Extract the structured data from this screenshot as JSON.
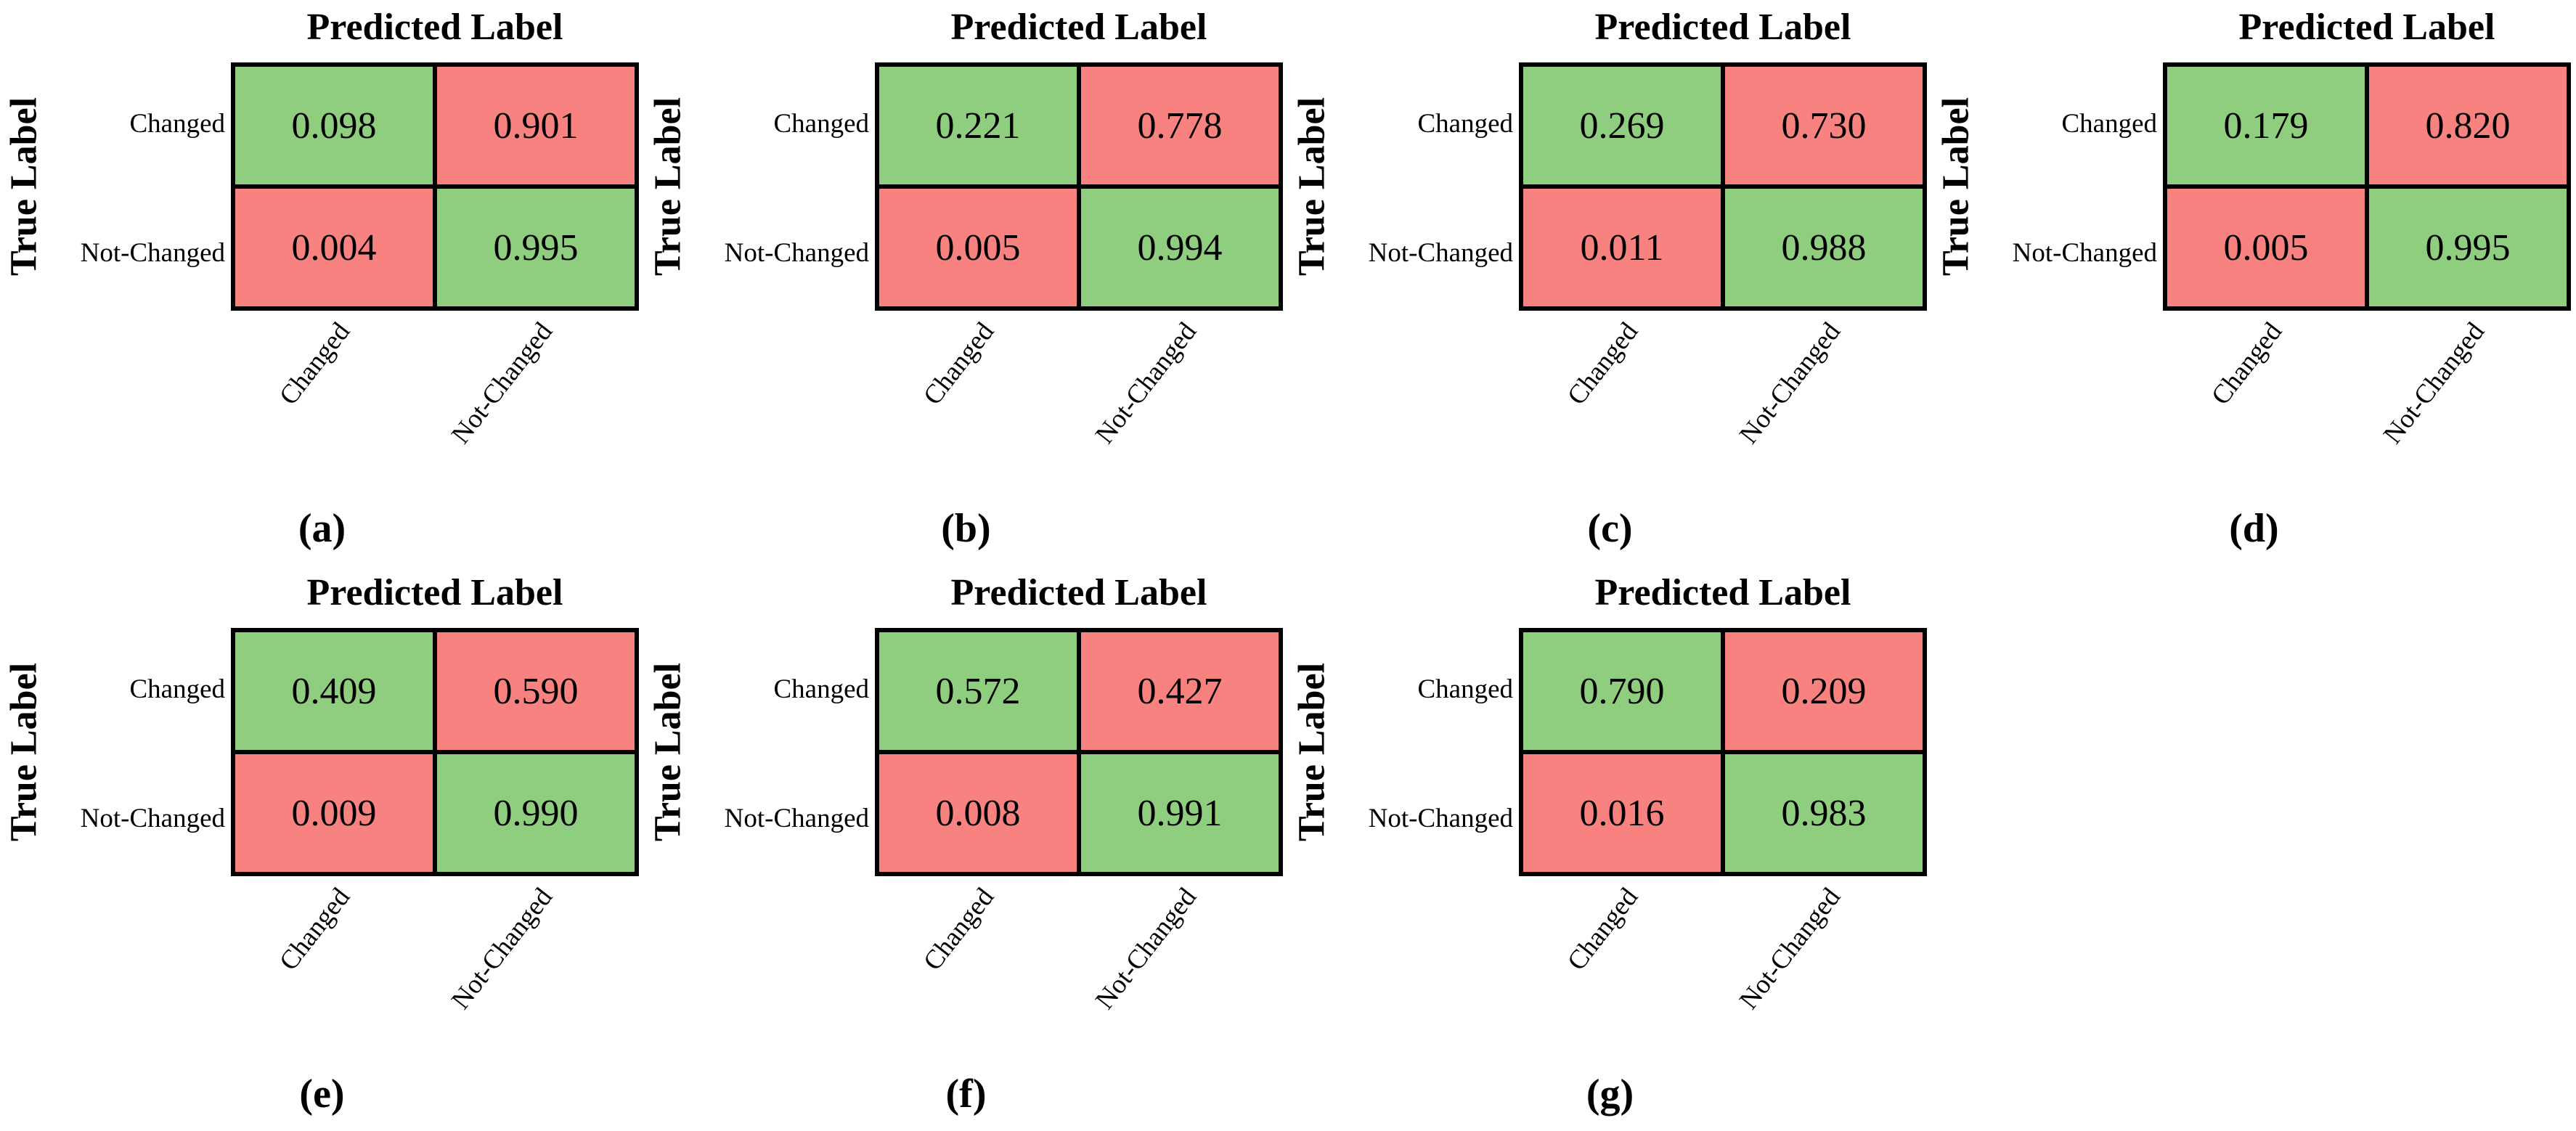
{
  "labels": {
    "predicted": "Predicted Label",
    "true_label": "True Label",
    "rows": [
      "Changed",
      "Not-Changed"
    ],
    "cols": [
      "Changed",
      "Not-Changed"
    ]
  },
  "colors": {
    "green": "#8fce7e",
    "red": "#f8827f",
    "border": "#000000",
    "background": "#ffffff"
  },
  "matrices": [
    {
      "caption": "(a)",
      "display": [
        [
          "0.098",
          "0.901"
        ],
        [
          "0.004",
          "0.995"
        ]
      ]
    },
    {
      "caption": "(b)",
      "display": [
        [
          "0.221",
          "0.778"
        ],
        [
          "0.005",
          "0.994"
        ]
      ]
    },
    {
      "caption": "(c)",
      "display": [
        [
          "0.269",
          "0.730"
        ],
        [
          "0.011",
          "0.988"
        ]
      ]
    },
    {
      "caption": "(d)",
      "display": [
        [
          "0.179",
          "0.820"
        ],
        [
          "0.005",
          "0.995"
        ]
      ]
    },
    {
      "caption": "(e)",
      "display": [
        [
          "0.409",
          "0.590"
        ],
        [
          "0.009",
          "0.990"
        ]
      ]
    },
    {
      "caption": "(f)",
      "display": [
        [
          "0.572",
          "0.427"
        ],
        [
          "0.008",
          "0.991"
        ]
      ]
    },
    {
      "caption": "(g)",
      "display": [
        [
          "0.790",
          "0.209"
        ],
        [
          "0.016",
          "0.983"
        ]
      ]
    }
  ],
  "chart_data": [
    {
      "type": "heatmap",
      "panel": "(a)",
      "title": "Predicted Label",
      "ylabel": "True Label",
      "x_categories": [
        "Changed",
        "Not-Changed"
      ],
      "y_categories": [
        "Changed",
        "Not-Changed"
      ],
      "values": [
        [
          0.098,
          0.901
        ],
        [
          0.004,
          0.995
        ]
      ],
      "cell_colors": [
        [
          "#8fce7e",
          "#f8827f"
        ],
        [
          "#f8827f",
          "#8fce7e"
        ]
      ]
    },
    {
      "type": "heatmap",
      "panel": "(b)",
      "title": "Predicted Label",
      "ylabel": "True Label",
      "x_categories": [
        "Changed",
        "Not-Changed"
      ],
      "y_categories": [
        "Changed",
        "Not-Changed"
      ],
      "values": [
        [
          0.221,
          0.778
        ],
        [
          0.005,
          0.994
        ]
      ],
      "cell_colors": [
        [
          "#8fce7e",
          "#f8827f"
        ],
        [
          "#f8827f",
          "#8fce7e"
        ]
      ]
    },
    {
      "type": "heatmap",
      "panel": "(c)",
      "title": "Predicted Label",
      "ylabel": "True Label",
      "x_categories": [
        "Changed",
        "Not-Changed"
      ],
      "y_categories": [
        "Changed",
        "Not-Changed"
      ],
      "values": [
        [
          0.269,
          0.73
        ],
        [
          0.011,
          0.988
        ]
      ],
      "cell_colors": [
        [
          "#8fce7e",
          "#f8827f"
        ],
        [
          "#f8827f",
          "#8fce7e"
        ]
      ]
    },
    {
      "type": "heatmap",
      "panel": "(d)",
      "title": "Predicted Label",
      "ylabel": "True Label",
      "x_categories": [
        "Changed",
        "Not-Changed"
      ],
      "y_categories": [
        "Changed",
        "Not-Changed"
      ],
      "values": [
        [
          0.179,
          0.82
        ],
        [
          0.005,
          0.995
        ]
      ],
      "cell_colors": [
        [
          "#8fce7e",
          "#f8827f"
        ],
        [
          "#f8827f",
          "#8fce7e"
        ]
      ]
    },
    {
      "type": "heatmap",
      "panel": "(e)",
      "title": "Predicted Label",
      "ylabel": "True Label",
      "x_categories": [
        "Changed",
        "Not-Changed"
      ],
      "y_categories": [
        "Changed",
        "Not-Changed"
      ],
      "values": [
        [
          0.409,
          0.59
        ],
        [
          0.009,
          0.99
        ]
      ],
      "cell_colors": [
        [
          "#8fce7e",
          "#f8827f"
        ],
        [
          "#f8827f",
          "#8fce7e"
        ]
      ]
    },
    {
      "type": "heatmap",
      "panel": "(f)",
      "title": "Predicted Label",
      "ylabel": "True Label",
      "x_categories": [
        "Changed",
        "Not-Changed"
      ],
      "y_categories": [
        "Changed",
        "Not-Changed"
      ],
      "values": [
        [
          0.572,
          0.427
        ],
        [
          0.008,
          0.991
        ]
      ],
      "cell_colors": [
        [
          "#8fce7e",
          "#f8827f"
        ],
        [
          "#f8827f",
          "#8fce7e"
        ]
      ]
    },
    {
      "type": "heatmap",
      "panel": "(g)",
      "title": "Predicted Label",
      "ylabel": "True Label",
      "x_categories": [
        "Changed",
        "Not-Changed"
      ],
      "y_categories": [
        "Changed",
        "Not-Changed"
      ],
      "values": [
        [
          0.79,
          0.209
        ],
        [
          0.016,
          0.983
        ]
      ],
      "cell_colors": [
        [
          "#8fce7e",
          "#f8827f"
        ],
        [
          "#f8827f",
          "#8fce7e"
        ]
      ]
    }
  ]
}
